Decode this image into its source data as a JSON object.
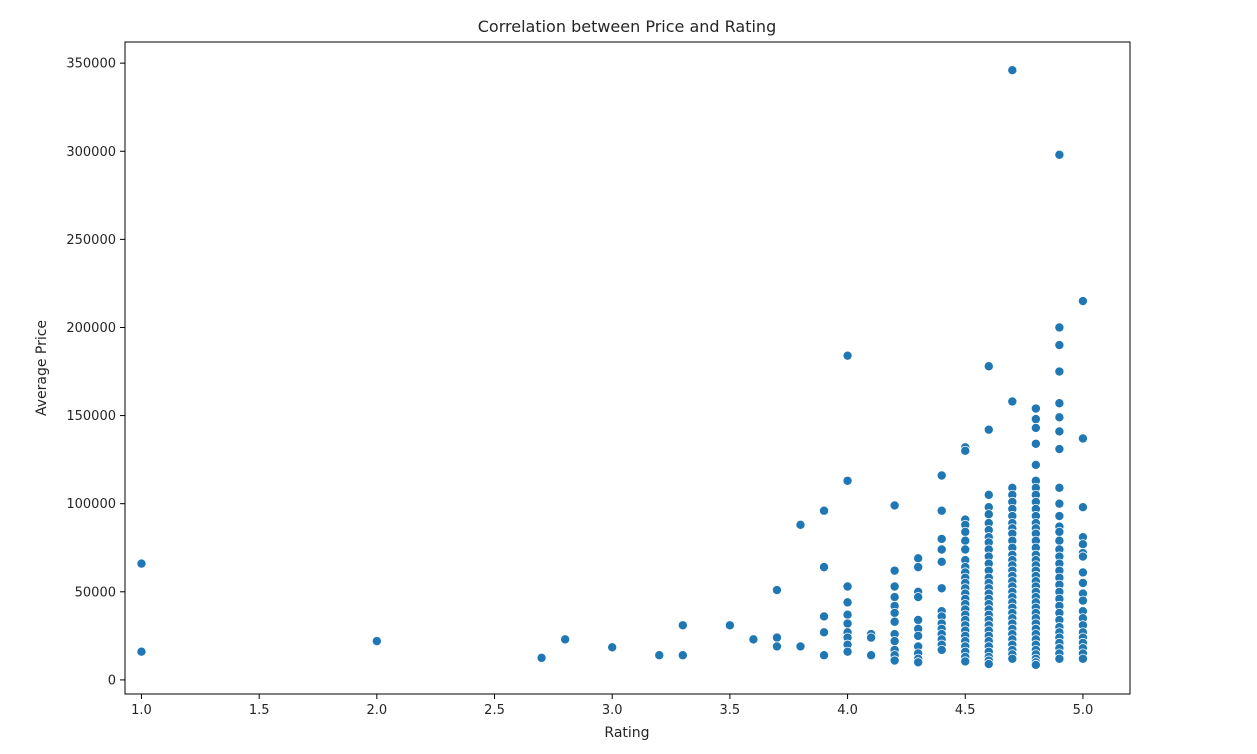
{
  "chart_data": {
    "type": "scatter",
    "title": "Correlation between Price and Rating",
    "xlabel": "Rating",
    "ylabel": "Average Price",
    "xlim": [
      0.93,
      5.2
    ],
    "ylim": [
      -8000,
      362000
    ],
    "xticks": [
      1.0,
      1.5,
      2.0,
      2.5,
      3.0,
      3.5,
      4.0,
      4.5,
      5.0
    ],
    "xtick_labels": [
      "1.0",
      "1.5",
      "2.0",
      "2.5",
      "3.0",
      "3.5",
      "4.0",
      "4.5",
      "5.0"
    ],
    "yticks": [
      0,
      50000,
      100000,
      150000,
      200000,
      250000,
      300000,
      350000
    ],
    "ytick_labels": [
      "0",
      "50000",
      "100000",
      "150000",
      "200000",
      "250000",
      "300000",
      "350000"
    ],
    "grid": false,
    "point_color": "#1f77b4",
    "points": [
      {
        "x": 1.0,
        "y": 66000
      },
      {
        "x": 1.0,
        "y": 16000
      },
      {
        "x": 2.0,
        "y": 22000
      },
      {
        "x": 2.7,
        "y": 12500
      },
      {
        "x": 2.8,
        "y": 23000
      },
      {
        "x": 3.0,
        "y": 18500
      },
      {
        "x": 3.2,
        "y": 14000
      },
      {
        "x": 3.3,
        "y": 31000
      },
      {
        "x": 3.3,
        "y": 14000
      },
      {
        "x": 3.5,
        "y": 31000
      },
      {
        "x": 3.6,
        "y": 23000
      },
      {
        "x": 3.7,
        "y": 51000
      },
      {
        "x": 3.7,
        "y": 24000
      },
      {
        "x": 3.7,
        "y": 19000
      },
      {
        "x": 3.8,
        "y": 88000
      },
      {
        "x": 3.8,
        "y": 19000
      },
      {
        "x": 3.9,
        "y": 96000
      },
      {
        "x": 3.9,
        "y": 64000
      },
      {
        "x": 3.9,
        "y": 36000
      },
      {
        "x": 3.9,
        "y": 27000
      },
      {
        "x": 3.9,
        "y": 14000
      },
      {
        "x": 4.0,
        "y": 184000
      },
      {
        "x": 4.0,
        "y": 113000
      },
      {
        "x": 4.0,
        "y": 53000
      },
      {
        "x": 4.0,
        "y": 44000
      },
      {
        "x": 4.0,
        "y": 37000
      },
      {
        "x": 4.0,
        "y": 32000
      },
      {
        "x": 4.0,
        "y": 27000
      },
      {
        "x": 4.0,
        "y": 24000
      },
      {
        "x": 4.0,
        "y": 20000
      },
      {
        "x": 4.0,
        "y": 16000
      },
      {
        "x": 4.1,
        "y": 26000
      },
      {
        "x": 4.1,
        "y": 24000
      },
      {
        "x": 4.1,
        "y": 14000
      },
      {
        "x": 4.2,
        "y": 99000
      },
      {
        "x": 4.2,
        "y": 62000
      },
      {
        "x": 4.2,
        "y": 53000
      },
      {
        "x": 4.2,
        "y": 47000
      },
      {
        "x": 4.2,
        "y": 42000
      },
      {
        "x": 4.2,
        "y": 38000
      },
      {
        "x": 4.2,
        "y": 33000
      },
      {
        "x": 4.2,
        "y": 26000
      },
      {
        "x": 4.2,
        "y": 22000
      },
      {
        "x": 4.2,
        "y": 17000
      },
      {
        "x": 4.2,
        "y": 14000
      },
      {
        "x": 4.2,
        "y": 11000
      },
      {
        "x": 4.3,
        "y": 69000
      },
      {
        "x": 4.3,
        "y": 64000
      },
      {
        "x": 4.3,
        "y": 50000
      },
      {
        "x": 4.3,
        "y": 47000
      },
      {
        "x": 4.3,
        "y": 34000
      },
      {
        "x": 4.3,
        "y": 29000
      },
      {
        "x": 4.3,
        "y": 25000
      },
      {
        "x": 4.3,
        "y": 19000
      },
      {
        "x": 4.3,
        "y": 15000
      },
      {
        "x": 4.3,
        "y": 12000
      },
      {
        "x": 4.3,
        "y": 10000
      },
      {
        "x": 4.4,
        "y": 116000
      },
      {
        "x": 4.4,
        "y": 96000
      },
      {
        "x": 4.4,
        "y": 80000
      },
      {
        "x": 4.4,
        "y": 74000
      },
      {
        "x": 4.4,
        "y": 67000
      },
      {
        "x": 4.4,
        "y": 52000
      },
      {
        "x": 4.4,
        "y": 39000
      },
      {
        "x": 4.4,
        "y": 36000
      },
      {
        "x": 4.4,
        "y": 32000
      },
      {
        "x": 4.4,
        "y": 29000
      },
      {
        "x": 4.4,
        "y": 26000
      },
      {
        "x": 4.4,
        "y": 23000
      },
      {
        "x": 4.4,
        "y": 20000
      },
      {
        "x": 4.4,
        "y": 17000
      },
      {
        "x": 4.5,
        "y": 132000
      },
      {
        "x": 4.5,
        "y": 130000
      },
      {
        "x": 4.5,
        "y": 91000
      },
      {
        "x": 4.5,
        "y": 88000
      },
      {
        "x": 4.5,
        "y": 84000
      },
      {
        "x": 4.5,
        "y": 79000
      },
      {
        "x": 4.5,
        "y": 74000
      },
      {
        "x": 4.5,
        "y": 68000
      },
      {
        "x": 4.5,
        "y": 64000
      },
      {
        "x": 4.5,
        "y": 61000
      },
      {
        "x": 4.5,
        "y": 58000
      },
      {
        "x": 4.5,
        "y": 55000
      },
      {
        "x": 4.5,
        "y": 52000
      },
      {
        "x": 4.5,
        "y": 49000
      },
      {
        "x": 4.5,
        "y": 46000
      },
      {
        "x": 4.5,
        "y": 43000
      },
      {
        "x": 4.5,
        "y": 40000
      },
      {
        "x": 4.5,
        "y": 37000
      },
      {
        "x": 4.5,
        "y": 34000
      },
      {
        "x": 4.5,
        "y": 31000
      },
      {
        "x": 4.5,
        "y": 28000
      },
      {
        "x": 4.5,
        "y": 25000
      },
      {
        "x": 4.5,
        "y": 22000
      },
      {
        "x": 4.5,
        "y": 19000
      },
      {
        "x": 4.5,
        "y": 16000
      },
      {
        "x": 4.5,
        "y": 13000
      },
      {
        "x": 4.5,
        "y": 10500
      },
      {
        "x": 4.6,
        "y": 178000
      },
      {
        "x": 4.6,
        "y": 142000
      },
      {
        "x": 4.6,
        "y": 105000
      },
      {
        "x": 4.6,
        "y": 98000
      },
      {
        "x": 4.6,
        "y": 94000
      },
      {
        "x": 4.6,
        "y": 89000
      },
      {
        "x": 4.6,
        "y": 85000
      },
      {
        "x": 4.6,
        "y": 81000
      },
      {
        "x": 4.6,
        "y": 78000
      },
      {
        "x": 4.6,
        "y": 74000
      },
      {
        "x": 4.6,
        "y": 70000
      },
      {
        "x": 4.6,
        "y": 66000
      },
      {
        "x": 4.6,
        "y": 62000
      },
      {
        "x": 4.6,
        "y": 58000
      },
      {
        "x": 4.6,
        "y": 55000
      },
      {
        "x": 4.6,
        "y": 52000
      },
      {
        "x": 4.6,
        "y": 49000
      },
      {
        "x": 4.6,
        "y": 46000
      },
      {
        "x": 4.6,
        "y": 43000
      },
      {
        "x": 4.6,
        "y": 40000
      },
      {
        "x": 4.6,
        "y": 37000
      },
      {
        "x": 4.6,
        "y": 34000
      },
      {
        "x": 4.6,
        "y": 31000
      },
      {
        "x": 4.6,
        "y": 28000
      },
      {
        "x": 4.6,
        "y": 25000
      },
      {
        "x": 4.6,
        "y": 22000
      },
      {
        "x": 4.6,
        "y": 19000
      },
      {
        "x": 4.6,
        "y": 16000
      },
      {
        "x": 4.6,
        "y": 13000
      },
      {
        "x": 4.6,
        "y": 11000
      },
      {
        "x": 4.6,
        "y": 9000
      },
      {
        "x": 4.7,
        "y": 346000
      },
      {
        "x": 4.7,
        "y": 158000
      },
      {
        "x": 4.7,
        "y": 109000
      },
      {
        "x": 4.7,
        "y": 105000
      },
      {
        "x": 4.7,
        "y": 101000
      },
      {
        "x": 4.7,
        "y": 97000
      },
      {
        "x": 4.7,
        "y": 93000
      },
      {
        "x": 4.7,
        "y": 89000
      },
      {
        "x": 4.7,
        "y": 86000
      },
      {
        "x": 4.7,
        "y": 83000
      },
      {
        "x": 4.7,
        "y": 79000
      },
      {
        "x": 4.7,
        "y": 75000
      },
      {
        "x": 4.7,
        "y": 71000
      },
      {
        "x": 4.7,
        "y": 68000
      },
      {
        "x": 4.7,
        "y": 65000
      },
      {
        "x": 4.7,
        "y": 62000
      },
      {
        "x": 4.7,
        "y": 59000
      },
      {
        "x": 4.7,
        "y": 56000
      },
      {
        "x": 4.7,
        "y": 53000
      },
      {
        "x": 4.7,
        "y": 50000
      },
      {
        "x": 4.7,
        "y": 47000
      },
      {
        "x": 4.7,
        "y": 44000
      },
      {
        "x": 4.7,
        "y": 41000
      },
      {
        "x": 4.7,
        "y": 38000
      },
      {
        "x": 4.7,
        "y": 35000
      },
      {
        "x": 4.7,
        "y": 32000
      },
      {
        "x": 4.7,
        "y": 29000
      },
      {
        "x": 4.7,
        "y": 26000
      },
      {
        "x": 4.7,
        "y": 23000
      },
      {
        "x": 4.7,
        "y": 20000
      },
      {
        "x": 4.7,
        "y": 17000
      },
      {
        "x": 4.7,
        "y": 14500
      },
      {
        "x": 4.7,
        "y": 12000
      },
      {
        "x": 4.8,
        "y": 154000
      },
      {
        "x": 4.8,
        "y": 148000
      },
      {
        "x": 4.8,
        "y": 143000
      },
      {
        "x": 4.8,
        "y": 134000
      },
      {
        "x": 4.8,
        "y": 122000
      },
      {
        "x": 4.8,
        "y": 113000
      },
      {
        "x": 4.8,
        "y": 109000
      },
      {
        "x": 4.8,
        "y": 105000
      },
      {
        "x": 4.8,
        "y": 101000
      },
      {
        "x": 4.8,
        "y": 97000
      },
      {
        "x": 4.8,
        "y": 93000
      },
      {
        "x": 4.8,
        "y": 89000
      },
      {
        "x": 4.8,
        "y": 86000
      },
      {
        "x": 4.8,
        "y": 83000
      },
      {
        "x": 4.8,
        "y": 79000
      },
      {
        "x": 4.8,
        "y": 75000
      },
      {
        "x": 4.8,
        "y": 71000
      },
      {
        "x": 4.8,
        "y": 68000
      },
      {
        "x": 4.8,
        "y": 65000
      },
      {
        "x": 4.8,
        "y": 62000
      },
      {
        "x": 4.8,
        "y": 59000
      },
      {
        "x": 4.8,
        "y": 56000
      },
      {
        "x": 4.8,
        "y": 53000
      },
      {
        "x": 4.8,
        "y": 50000
      },
      {
        "x": 4.8,
        "y": 47000
      },
      {
        "x": 4.8,
        "y": 44000
      },
      {
        "x": 4.8,
        "y": 41000
      },
      {
        "x": 4.8,
        "y": 38000
      },
      {
        "x": 4.8,
        "y": 35000
      },
      {
        "x": 4.8,
        "y": 32000
      },
      {
        "x": 4.8,
        "y": 29000
      },
      {
        "x": 4.8,
        "y": 26000
      },
      {
        "x": 4.8,
        "y": 23000
      },
      {
        "x": 4.8,
        "y": 20000
      },
      {
        "x": 4.8,
        "y": 17000
      },
      {
        "x": 4.8,
        "y": 14500
      },
      {
        "x": 4.8,
        "y": 12000
      },
      {
        "x": 4.8,
        "y": 10000
      },
      {
        "x": 4.8,
        "y": 8500
      },
      {
        "x": 4.9,
        "y": 298000
      },
      {
        "x": 4.9,
        "y": 200000
      },
      {
        "x": 4.9,
        "y": 190000
      },
      {
        "x": 4.9,
        "y": 175000
      },
      {
        "x": 4.9,
        "y": 157000
      },
      {
        "x": 4.9,
        "y": 149000
      },
      {
        "x": 4.9,
        "y": 141000
      },
      {
        "x": 4.9,
        "y": 131000
      },
      {
        "x": 4.9,
        "y": 109000
      },
      {
        "x": 4.9,
        "y": 100000
      },
      {
        "x": 4.9,
        "y": 93000
      },
      {
        "x": 4.9,
        "y": 87000
      },
      {
        "x": 4.9,
        "y": 84000
      },
      {
        "x": 4.9,
        "y": 79000
      },
      {
        "x": 4.9,
        "y": 74000
      },
      {
        "x": 4.9,
        "y": 70000
      },
      {
        "x": 4.9,
        "y": 66000
      },
      {
        "x": 4.9,
        "y": 62000
      },
      {
        "x": 4.9,
        "y": 58000
      },
      {
        "x": 4.9,
        "y": 54000
      },
      {
        "x": 4.9,
        "y": 50000
      },
      {
        "x": 4.9,
        "y": 46000
      },
      {
        "x": 4.9,
        "y": 42000
      },
      {
        "x": 4.9,
        "y": 38000
      },
      {
        "x": 4.9,
        "y": 34000
      },
      {
        "x": 4.9,
        "y": 30000
      },
      {
        "x": 4.9,
        "y": 27000
      },
      {
        "x": 4.9,
        "y": 24000
      },
      {
        "x": 4.9,
        "y": 21000
      },
      {
        "x": 4.9,
        "y": 18000
      },
      {
        "x": 4.9,
        "y": 15000
      },
      {
        "x": 4.9,
        "y": 12000
      },
      {
        "x": 5.0,
        "y": 215000
      },
      {
        "x": 5.0,
        "y": 137000
      },
      {
        "x": 5.0,
        "y": 98000
      },
      {
        "x": 5.0,
        "y": 81000
      },
      {
        "x": 5.0,
        "y": 77000
      },
      {
        "x": 5.0,
        "y": 72000
      },
      {
        "x": 5.0,
        "y": 70000
      },
      {
        "x": 5.0,
        "y": 61000
      },
      {
        "x": 5.0,
        "y": 55000
      },
      {
        "x": 5.0,
        "y": 49000
      },
      {
        "x": 5.0,
        "y": 45000
      },
      {
        "x": 5.0,
        "y": 39000
      },
      {
        "x": 5.0,
        "y": 35000
      },
      {
        "x": 5.0,
        "y": 31000
      },
      {
        "x": 5.0,
        "y": 27000
      },
      {
        "x": 5.0,
        "y": 24000
      },
      {
        "x": 5.0,
        "y": 21000
      },
      {
        "x": 5.0,
        "y": 18000
      },
      {
        "x": 5.0,
        "y": 15000
      },
      {
        "x": 5.0,
        "y": 12000
      }
    ]
  }
}
